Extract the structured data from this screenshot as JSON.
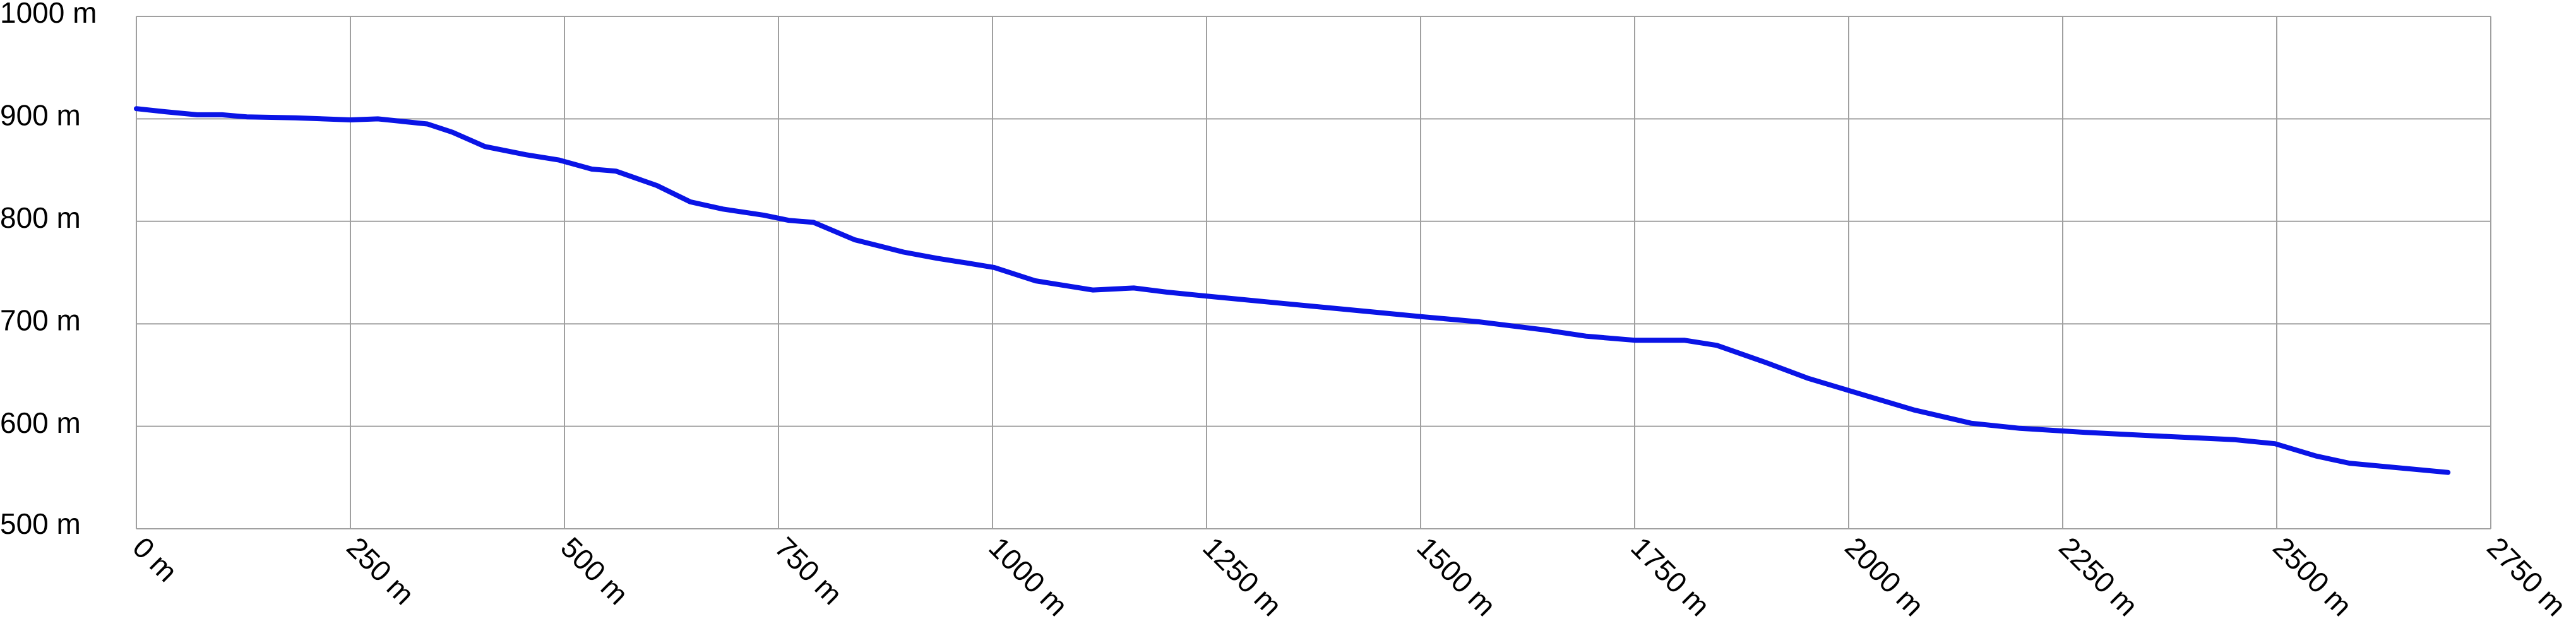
{
  "chart_data": {
    "type": "line",
    "x": [
      0,
      33,
      71,
      100,
      129,
      186,
      250,
      282,
      340,
      369,
      407,
      455,
      493,
      532,
      560,
      608,
      647,
      685,
      733,
      762,
      791,
      839,
      896,
      935,
      973,
      1002,
      1050,
      1117,
      1165,
      1203,
      1251,
      1338,
      1414,
      1501,
      1568,
      1645,
      1693,
      1750,
      1808,
      1846,
      1904,
      1952,
      2000,
      2076,
      2143,
      2200,
      2277,
      2373,
      2450,
      2498,
      2546,
      2585,
      2700
    ],
    "values": [
      910,
      907,
      904,
      904,
      902,
      901,
      899,
      900,
      895,
      887,
      873,
      865,
      860,
      851,
      849,
      835,
      819,
      812,
      806,
      801,
      799,
      782,
      770,
      764,
      759,
      755,
      742,
      733,
      735,
      731,
      727,
      720,
      714,
      707,
      702,
      694,
      688,
      684,
      684,
      679,
      662,
      647,
      635,
      616,
      603,
      598,
      594,
      590,
      587,
      583,
      571,
      564,
      555
    ],
    "color": "#0a14e6",
    "xlim": [
      0,
      2750
    ],
    "ylim": [
      500,
      1000
    ],
    "xticks": [
      {
        "value": 0,
        "label": "0 m"
      },
      {
        "value": 250,
        "label": "250 m"
      },
      {
        "value": 500,
        "label": "500 m"
      },
      {
        "value": 750,
        "label": "750 m"
      },
      {
        "value": 1000,
        "label": "1000 m"
      },
      {
        "value": 1250,
        "label": "1250 m"
      },
      {
        "value": 1500,
        "label": "1500 m"
      },
      {
        "value": 1750,
        "label": "1750 m"
      },
      {
        "value": 2000,
        "label": "2000 m"
      },
      {
        "value": 2250,
        "label": "2250 m"
      },
      {
        "value": 2500,
        "label": "2500 m"
      },
      {
        "value": 2750,
        "label": "2750 m"
      }
    ],
    "yticks": [
      {
        "value": 500,
        "label": "500 m"
      },
      {
        "value": 600,
        "label": "600 m"
      },
      {
        "value": 700,
        "label": "700 m"
      },
      {
        "value": 800,
        "label": "800 m"
      },
      {
        "value": 900,
        "label": "900 m"
      },
      {
        "value": 1000,
        "label": "1000 m"
      }
    ],
    "grid": true
  }
}
